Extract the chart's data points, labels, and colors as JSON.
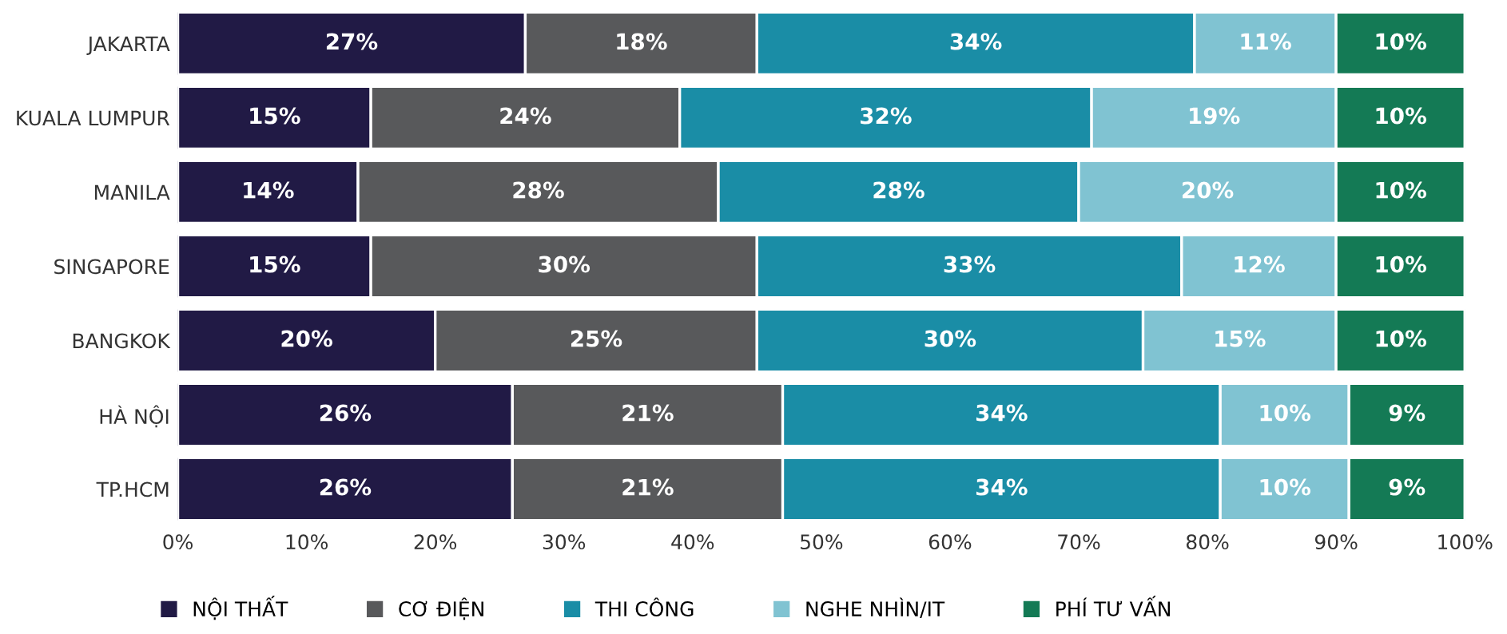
{
  "chart_data": {
    "type": "bar",
    "orientation": "horizontal",
    "stacked": true,
    "categories": [
      "JAKARTA",
      "KUALA LUMPUR",
      "MANILA",
      "SINGAPORE",
      "BANGKOK",
      "HÀ NỘI",
      "TP.HCM"
    ],
    "series": [
      {
        "name": "NỘI THẤT",
        "color": "#211a45",
        "values": [
          27,
          15,
          14,
          15,
          20,
          26,
          26
        ],
        "value_labels": [
          "27%",
          "15%",
          "14%",
          "15%",
          "20%",
          "26%",
          "26%"
        ]
      },
      {
        "name": "CƠ ĐIỆN",
        "color": "#58595b",
        "values": [
          18,
          24,
          28,
          30,
          25,
          21,
          21
        ],
        "value_labels": [
          "18%",
          "24%",
          "28%",
          "30%",
          "25%",
          "21%",
          "21%"
        ]
      },
      {
        "name": "THI CÔNG",
        "color": "#1a8da6",
        "values": [
          34,
          32,
          28,
          33,
          30,
          34,
          34
        ],
        "value_labels": [
          "34%",
          "32%",
          "28%",
          "33%",
          "30%",
          "34%",
          "34%"
        ]
      },
      {
        "name": "NGHE NHÌN/IT",
        "color": "#80c3d2",
        "values": [
          11,
          19,
          20,
          12,
          15,
          10,
          10
        ],
        "value_labels": [
          "11%",
          "19%",
          "20%",
          "12%",
          "15%",
          "10%",
          "10%"
        ]
      },
      {
        "name": "PHÍ TƯ VẤN",
        "color": "#147a55",
        "values": [
          10,
          10,
          10,
          10,
          10,
          9,
          9
        ],
        "value_labels": [
          "10%",
          "10%",
          "10%",
          "10%",
          "10%",
          "9%",
          "9%"
        ]
      }
    ],
    "xlim": [
      0,
      100
    ],
    "xticks": [
      {
        "value": 0,
        "label": "0%"
      },
      {
        "value": 10,
        "label": "10%"
      },
      {
        "value": 20,
        "label": "20%"
      },
      {
        "value": 30,
        "label": "30%"
      },
      {
        "value": 40,
        "label": "40%"
      },
      {
        "value": 50,
        "label": "50%"
      },
      {
        "value": 60,
        "label": "60%"
      },
      {
        "value": 70,
        "label": "70%"
      },
      {
        "value": 80,
        "label": "80%"
      },
      {
        "value": 90,
        "label": "90%"
      },
      {
        "value": 100,
        "label": "100%"
      }
    ],
    "legend": "bottom",
    "grid": false
  }
}
